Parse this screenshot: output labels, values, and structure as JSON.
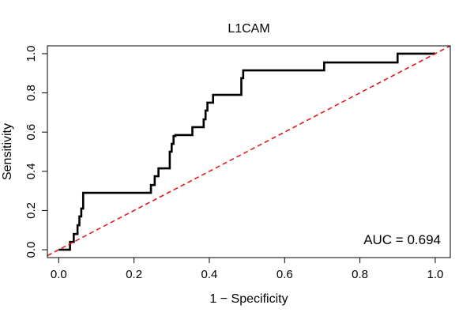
{
  "chart_data": {
    "type": "line",
    "title": "L1CAM",
    "xlabel": "1 − Specificity",
    "ylabel": "Sensitivity",
    "xlim": [
      -0.03,
      1.04
    ],
    "ylim": [
      -0.04,
      1.04
    ],
    "xticks": [
      0.0,
      0.2,
      0.4,
      0.6,
      0.8,
      1.0
    ],
    "xtick_labels": [
      "0.0",
      "0.2",
      "0.4",
      "0.6",
      "0.8",
      "1.0"
    ],
    "yticks": [
      0.0,
      0.2,
      0.4,
      0.6,
      0.8,
      1.0
    ],
    "ytick_labels": [
      "0.0",
      "0.2",
      "0.4",
      "0.6",
      "0.8",
      "1.0"
    ],
    "annotation": "AUC = 0.694",
    "grid": false,
    "series": [
      {
        "color": "#000000",
        "style": "solid",
        "x": [
          0.0,
          0.03,
          0.03,
          0.04,
          0.04,
          0.05,
          0.05,
          0.055,
          0.055,
          0.06,
          0.06,
          0.065,
          0.065,
          0.245,
          0.245,
          0.255,
          0.255,
          0.265,
          0.265,
          0.295,
          0.295,
          0.3,
          0.3,
          0.305,
          0.305,
          0.31,
          0.31,
          0.355,
          0.355,
          0.385,
          0.385,
          0.39,
          0.39,
          0.395,
          0.395,
          0.41,
          0.41,
          0.485,
          0.485,
          0.49,
          0.49,
          0.705,
          0.705,
          0.9,
          0.9,
          1.0
        ],
        "y": [
          0.0,
          0.0,
          0.04,
          0.04,
          0.08,
          0.08,
          0.125,
          0.125,
          0.17,
          0.17,
          0.21,
          0.21,
          0.29,
          0.29,
          0.33,
          0.33,
          0.375,
          0.375,
          0.415,
          0.415,
          0.5,
          0.5,
          0.54,
          0.54,
          0.58,
          0.58,
          0.585,
          0.585,
          0.625,
          0.625,
          0.665,
          0.665,
          0.71,
          0.71,
          0.75,
          0.75,
          0.79,
          0.79,
          0.875,
          0.875,
          0.915,
          0.915,
          0.955,
          0.955,
          1.0,
          1.0
        ]
      },
      {
        "color": "#e41a1c",
        "style": "dashed",
        "x": [
          -0.03,
          1.04
        ],
        "y": [
          -0.03,
          1.04
        ]
      }
    ]
  }
}
